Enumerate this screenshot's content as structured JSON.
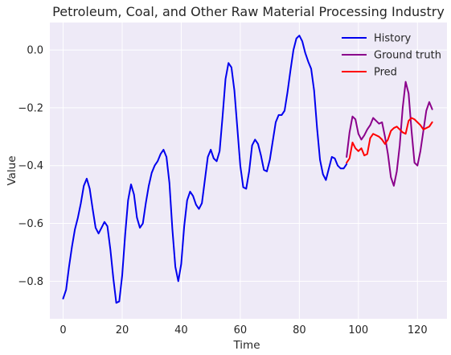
{
  "chart_data": {
    "type": "line",
    "title": "Petroleum, Coal, and Other Raw Material Processing Industry",
    "xlabel": "Time",
    "ylabel": "Value",
    "xlim": [
      -4.5,
      130
    ],
    "ylim": [
      -0.93,
      0.095
    ],
    "xticks": [
      0,
      20,
      40,
      60,
      80,
      100,
      120
    ],
    "yticks": [
      -0.8,
      -0.6,
      -0.4,
      -0.2,
      0.0
    ],
    "ytick_labels": [
      "−0.8",
      "−0.6",
      "−0.4",
      "−0.2",
      "0.0"
    ],
    "grid": true,
    "legend_position": "top-right",
    "background_color": "#eeeaf7",
    "series": [
      {
        "name": "History",
        "color": "#0000ee",
        "x": [
          0,
          1,
          2,
          3,
          4,
          5,
          6,
          7,
          8,
          9,
          10,
          11,
          12,
          13,
          14,
          15,
          16,
          17,
          18,
          19,
          20,
          21,
          22,
          23,
          24,
          25,
          26,
          27,
          28,
          29,
          30,
          31,
          32,
          33,
          34,
          35,
          36,
          37,
          38,
          39,
          40,
          41,
          42,
          43,
          44,
          45,
          46,
          47,
          48,
          49,
          50,
          51,
          52,
          53,
          54,
          55,
          56,
          57,
          58,
          59,
          60,
          61,
          62,
          63,
          64,
          65,
          66,
          67,
          68,
          69,
          70,
          71,
          72,
          73,
          74,
          75,
          76,
          77,
          78,
          79,
          80,
          81,
          82,
          83,
          84,
          85,
          86,
          87,
          88,
          89,
          90,
          91,
          92,
          93,
          94,
          95,
          96
        ],
        "y": [
          -0.86,
          -0.83,
          -0.75,
          -0.68,
          -0.62,
          -0.58,
          -0.53,
          -0.47,
          -0.445,
          -0.48,
          -0.55,
          -0.615,
          -0.635,
          -0.615,
          -0.595,
          -0.61,
          -0.69,
          -0.79,
          -0.875,
          -0.87,
          -0.78,
          -0.64,
          -0.52,
          -0.465,
          -0.5,
          -0.58,
          -0.615,
          -0.6,
          -0.53,
          -0.47,
          -0.425,
          -0.4,
          -0.385,
          -0.36,
          -0.345,
          -0.37,
          -0.46,
          -0.62,
          -0.75,
          -0.8,
          -0.74,
          -0.61,
          -0.52,
          -0.49,
          -0.505,
          -0.535,
          -0.55,
          -0.53,
          -0.45,
          -0.37,
          -0.345,
          -0.375,
          -0.385,
          -0.35,
          -0.23,
          -0.1,
          -0.045,
          -0.06,
          -0.14,
          -0.27,
          -0.4,
          -0.475,
          -0.48,
          -0.42,
          -0.33,
          -0.31,
          -0.325,
          -0.365,
          -0.415,
          -0.42,
          -0.38,
          -0.315,
          -0.25,
          -0.225,
          -0.225,
          -0.21,
          -0.145,
          -0.07,
          0.0,
          0.04,
          0.05,
          0.03,
          -0.01,
          -0.04,
          -0.065,
          -0.14,
          -0.27,
          -0.38,
          -0.43,
          -0.45,
          -0.41,
          -0.37,
          -0.375,
          -0.4,
          -0.41,
          -0.41,
          -0.395
        ]
      },
      {
        "name": "Ground truth",
        "color": "#8b008b",
        "x": [
          96,
          97,
          98,
          99,
          100,
          101,
          102,
          103,
          104,
          105,
          106,
          107,
          108,
          109,
          110,
          111,
          112,
          113,
          114,
          115,
          116,
          117,
          118,
          119,
          120,
          121,
          122,
          123,
          124,
          125
        ],
        "y": [
          -0.37,
          -0.285,
          -0.23,
          -0.24,
          -0.29,
          -0.31,
          -0.295,
          -0.275,
          -0.26,
          -0.235,
          -0.245,
          -0.255,
          -0.25,
          -0.3,
          -0.36,
          -0.44,
          -0.47,
          -0.42,
          -0.33,
          -0.2,
          -0.11,
          -0.15,
          -0.28,
          -0.39,
          -0.4,
          -0.35,
          -0.28,
          -0.21,
          -0.18,
          -0.205
        ]
      },
      {
        "name": "Pred",
        "color": "#ff0000",
        "x": [
          96,
          97,
          98,
          99,
          100,
          101,
          102,
          103,
          104,
          105,
          106,
          107,
          108,
          109,
          110,
          111,
          112,
          113,
          114,
          115,
          116,
          117,
          118,
          119,
          120,
          121,
          122,
          123,
          124,
          125
        ],
        "y": [
          -0.39,
          -0.375,
          -0.32,
          -0.34,
          -0.35,
          -0.34,
          -0.365,
          -0.36,
          -0.305,
          -0.29,
          -0.295,
          -0.3,
          -0.31,
          -0.325,
          -0.31,
          -0.28,
          -0.27,
          -0.265,
          -0.275,
          -0.285,
          -0.29,
          -0.245,
          -0.235,
          -0.24,
          -0.25,
          -0.26,
          -0.275,
          -0.27,
          -0.265,
          -0.25
        ]
      }
    ]
  }
}
